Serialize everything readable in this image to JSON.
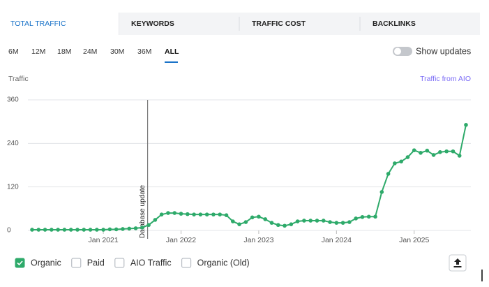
{
  "tabs": [
    {
      "label": "TOTAL TRAFFIC",
      "active": true
    },
    {
      "label": "KEYWORDS",
      "active": false
    },
    {
      "label": "TRAFFIC COST",
      "active": false
    },
    {
      "label": "BACKLINKS",
      "active": false
    }
  ],
  "periods": {
    "options": [
      "6M",
      "12M",
      "18M",
      "24M",
      "30M",
      "36M",
      "ALL"
    ],
    "active": "ALL"
  },
  "toggle": {
    "label": "Show updates",
    "on": false
  },
  "chart_data": {
    "type": "line",
    "y_label": "Traffic",
    "aio_link": "Traffic from AIO",
    "x": [
      "2020-02",
      "2020-03",
      "2020-04",
      "2020-05",
      "2020-06",
      "2020-07",
      "2020-08",
      "2020-09",
      "2020-10",
      "2020-11",
      "2020-12",
      "2021-01",
      "2021-02",
      "2021-03",
      "2021-04",
      "2021-05",
      "2021-06",
      "2021-07",
      "2021-08",
      "2021-09",
      "2021-10",
      "2021-11",
      "2021-12",
      "2022-01",
      "2022-02",
      "2022-03",
      "2022-04",
      "2022-05",
      "2022-06",
      "2022-07",
      "2022-08",
      "2022-09",
      "2022-10",
      "2022-11",
      "2022-12",
      "2023-01",
      "2023-02",
      "2023-03",
      "2023-04",
      "2023-05",
      "2023-06",
      "2023-07",
      "2023-08",
      "2023-09",
      "2023-10",
      "2023-11",
      "2023-12",
      "2024-01",
      "2024-02",
      "2024-03",
      "2024-04",
      "2024-05",
      "2024-06",
      "2024-07",
      "2024-08",
      "2024-09",
      "2024-10",
      "2024-11",
      "2024-12",
      "2025-01",
      "2025-02",
      "2025-03",
      "2025-04",
      "2025-05",
      "2025-06",
      "2025-07",
      "2025-08",
      "2025-09"
    ],
    "series": [
      {
        "name": "Organic",
        "color": "#2eaa6a",
        "checked": true,
        "values": [
          2,
          2,
          2,
          2,
          2,
          2,
          2,
          2,
          2,
          2,
          2,
          2,
          3,
          3,
          4,
          5,
          6,
          8,
          15,
          29,
          44,
          48,
          48,
          46,
          45,
          44,
          44,
          44,
          44,
          44,
          42,
          25,
          17,
          23,
          36,
          38,
          31,
          21,
          15,
          13,
          17,
          25,
          27,
          27,
          27,
          27,
          23,
          21,
          21,
          23,
          33,
          37,
          38,
          38,
          106,
          156,
          185,
          190,
          202,
          221,
          214,
          220,
          208,
          216,
          218,
          218,
          206,
          291
        ]
      }
    ],
    "other_series": [
      "Paid",
      "AIO Traffic",
      "Organic (Old)"
    ],
    "annotation": {
      "x": "2021-08",
      "text": "Database update"
    },
    "xlim": [
      "2020-02",
      "2025-09"
    ],
    "xticks": [
      {
        "value": "2021-01",
        "label": "Jan 2021"
      },
      {
        "value": "2022-01",
        "label": "Jan 2022"
      },
      {
        "value": "2023-01",
        "label": "Jan 2023"
      },
      {
        "value": "2024-01",
        "label": "Jan 2024"
      },
      {
        "value": "2025-01",
        "label": "Jan 2025"
      }
    ],
    "ylim": [
      0,
      360
    ],
    "yticks": [
      0,
      120,
      240,
      360
    ],
    "grid": true
  }
}
